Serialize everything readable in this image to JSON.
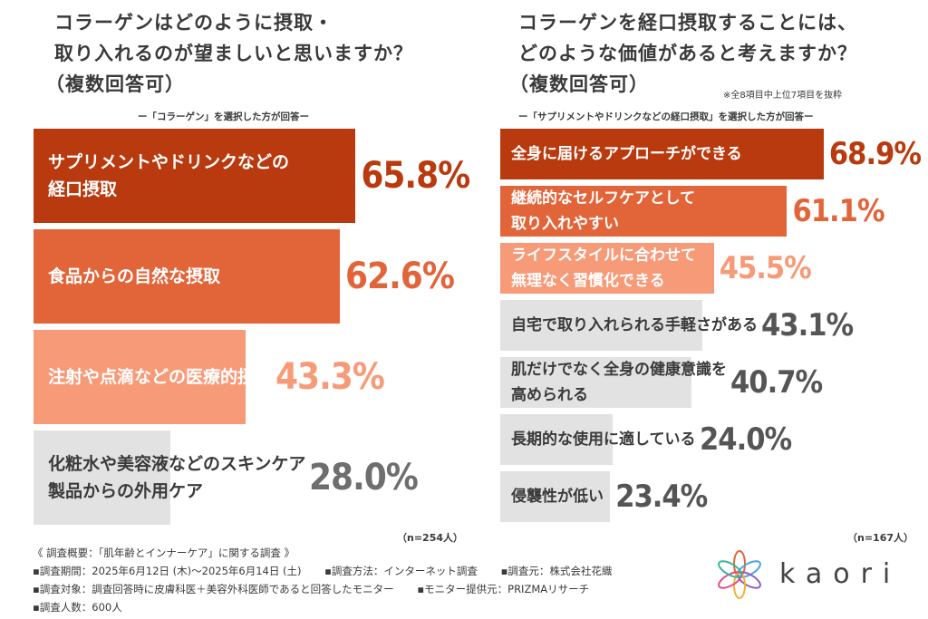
{
  "left": {
    "title_line1": "コラーゲンはどのように摂取・",
    "title_line2": "取り入れるのが望ましいと思いますか？",
    "title_line3": "（複数回答可）",
    "subtitle": "ー「コラーゲン」を選択した方が回答ー",
    "n_label": "（n=254人）"
  },
  "right": {
    "title_line1": "コラーゲンを経口摂取することには、",
    "title_line2": "どのような価値があると考えますか？",
    "title_line3": "（複数回答可）",
    "note": "※全8項目中上位7項目を抜粋",
    "subtitle": "ー「サプリメントやドリンクなどの経口摂取」を選択した方が回答ー",
    "n_label": "（n=167人）"
  },
  "chart_data": [
    {
      "type": "bar",
      "orientation": "horizontal",
      "categories": [
        "サプリメントやドリンクなどの\n経口摂取",
        "食品からの自然な摂取",
        "注射や点滴などの医療的摂取",
        "化粧水や美容液などのスキンケア\n製品からの外用ケア"
      ],
      "values": [
        65.8,
        62.6,
        43.3,
        28.0
      ],
      "value_labels": [
        "65.8%",
        "62.6%",
        "43.3%",
        "28.0%"
      ],
      "bar_colors": [
        "#b83a0e",
        "#e2653a",
        "#f79a78",
        "#e2e2e2"
      ],
      "value_colors": [
        "#b83a0e",
        "#e2653a",
        "#f79a78",
        "#6e6e6e"
      ],
      "label_colors": [
        "#ffffff",
        "#ffffff",
        "#ffffff",
        "#3a3a3a"
      ],
      "xlim": [
        0,
        100
      ],
      "grid": false
    },
    {
      "type": "bar",
      "orientation": "horizontal",
      "categories": [
        "全身に届けるアプローチができる",
        "継続的なセルフケアとして\n取り入れやすい",
        "ライフスタイルに合わせて\n無理なく習慣化できる",
        "自宅で取り入れられる手軽さがある",
        "肌だけでなく全身の健康意識を\n高められる",
        "長期的な使用に適している",
        "侵襲性が低い"
      ],
      "values": [
        68.9,
        61.1,
        45.5,
        43.1,
        40.7,
        24.0,
        23.4
      ],
      "value_labels": [
        "68.9%",
        "61.1%",
        "45.5%",
        "43.1%",
        "40.7%",
        "24.0%",
        "23.4%"
      ],
      "bar_colors": [
        "#b83a0e",
        "#e2653a",
        "#f79a78",
        "#e2e2e2",
        "#e2e2e2",
        "#e2e2e2",
        "#e2e2e2"
      ],
      "value_colors": [
        "#b83a0e",
        "#e2653a",
        "#f79a78",
        "#555555",
        "#555555",
        "#555555",
        "#555555"
      ],
      "label_colors": [
        "#ffffff",
        "#ffffff",
        "#ffffff",
        "#3a3a3a",
        "#3a3a3a",
        "#3a3a3a",
        "#3a3a3a"
      ],
      "xlim": [
        0,
        100
      ],
      "grid": false
    }
  ],
  "footer": {
    "overview": "《 調査概要：「肌年齢とインナーケア」に関する調査 》",
    "period": "▪調査期間：2025年6月12日 (木)〜2025年6月14日 (土)",
    "method": "▪調査方法：インターネット調査",
    "source": "▪調査元：株式会社花織",
    "target": "▪調査対象：調査回答時に皮膚科医＋美容外科医師であると回答したモニター",
    "provider": "▪モニター提供元：PRIZMAリサーチ",
    "count": "▪調査人数：600人"
  },
  "logo": {
    "text": "kaori",
    "colors": [
      "#e2653a",
      "#4aa3df",
      "#8e5fbf",
      "#f2b134",
      "#e64b8a"
    ]
  }
}
